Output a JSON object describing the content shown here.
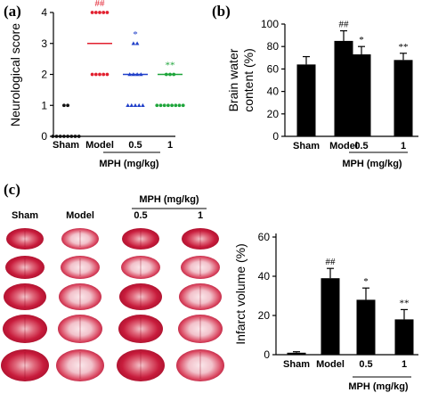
{
  "panel_letters": [
    "(a)",
    "(b)",
    "(c)"
  ],
  "colors": {
    "red": "#e2202f",
    "blue": "#2140c9",
    "green": "#1ea53a",
    "black": "#111111"
  },
  "chart_data": [
    {
      "type": "scatter",
      "panel": "(a)",
      "ylabel": "Neurological score",
      "ylim": [
        0,
        4
      ],
      "yticks": [
        "0",
        "1",
        "2",
        "3",
        "4"
      ],
      "categories": [
        "Sham",
        "Model",
        "0.5",
        "1"
      ],
      "group_label": "MPH (mg/kg)",
      "significance": [
        "",
        "##",
        "*",
        "**"
      ],
      "means": [
        0,
        3,
        2,
        2
      ],
      "points": [
        [
          1,
          1,
          0,
          0,
          0,
          0,
          0,
          0,
          0,
          0
        ],
        [
          4,
          4,
          4,
          4,
          4,
          2,
          2,
          2,
          2,
          2
        ],
        [
          3,
          3,
          2,
          2,
          2,
          2,
          1,
          1,
          1,
          1,
          1
        ],
        [
          2,
          2,
          2,
          1,
          1,
          1,
          1,
          1,
          1,
          1,
          1
        ]
      ]
    },
    {
      "type": "bar",
      "panel": "(b)",
      "ylabel": "Brain water content (%)",
      "ylabel_lines": [
        "Brain water",
        "content (%)"
      ],
      "ylim": [
        0,
        100
      ],
      "yticks": [
        "0",
        "20",
        "40",
        "60",
        "80",
        "100"
      ],
      "categories": [
        "Sham",
        "Model",
        "0.5",
        "1"
      ],
      "group_label": "MPH (mg/kg)",
      "values": [
        64,
        85,
        73,
        68
      ],
      "errors": [
        7,
        9,
        7,
        6
      ],
      "significance": [
        "",
        "##",
        "*",
        "**"
      ]
    },
    {
      "type": "bar",
      "panel": "(c)",
      "ylabel": "Infarct volume (%)",
      "ylim": [
        0,
        60
      ],
      "yticks": [
        "0",
        "20",
        "40",
        "60"
      ],
      "categories": [
        "Sham",
        "Model",
        "0.5",
        "1"
      ],
      "group_label": "MPH (mg/kg)",
      "values": [
        1,
        39,
        28,
        18
      ],
      "errors": [
        0.5,
        5,
        6,
        5
      ],
      "significance": [
        "",
        "##",
        "*",
        "**"
      ]
    }
  ],
  "photos": {
    "column_labels": [
      "Sham",
      "Model",
      "0.5",
      "1"
    ],
    "group_label": "MPH (mg/kg)",
    "rows": 5
  }
}
